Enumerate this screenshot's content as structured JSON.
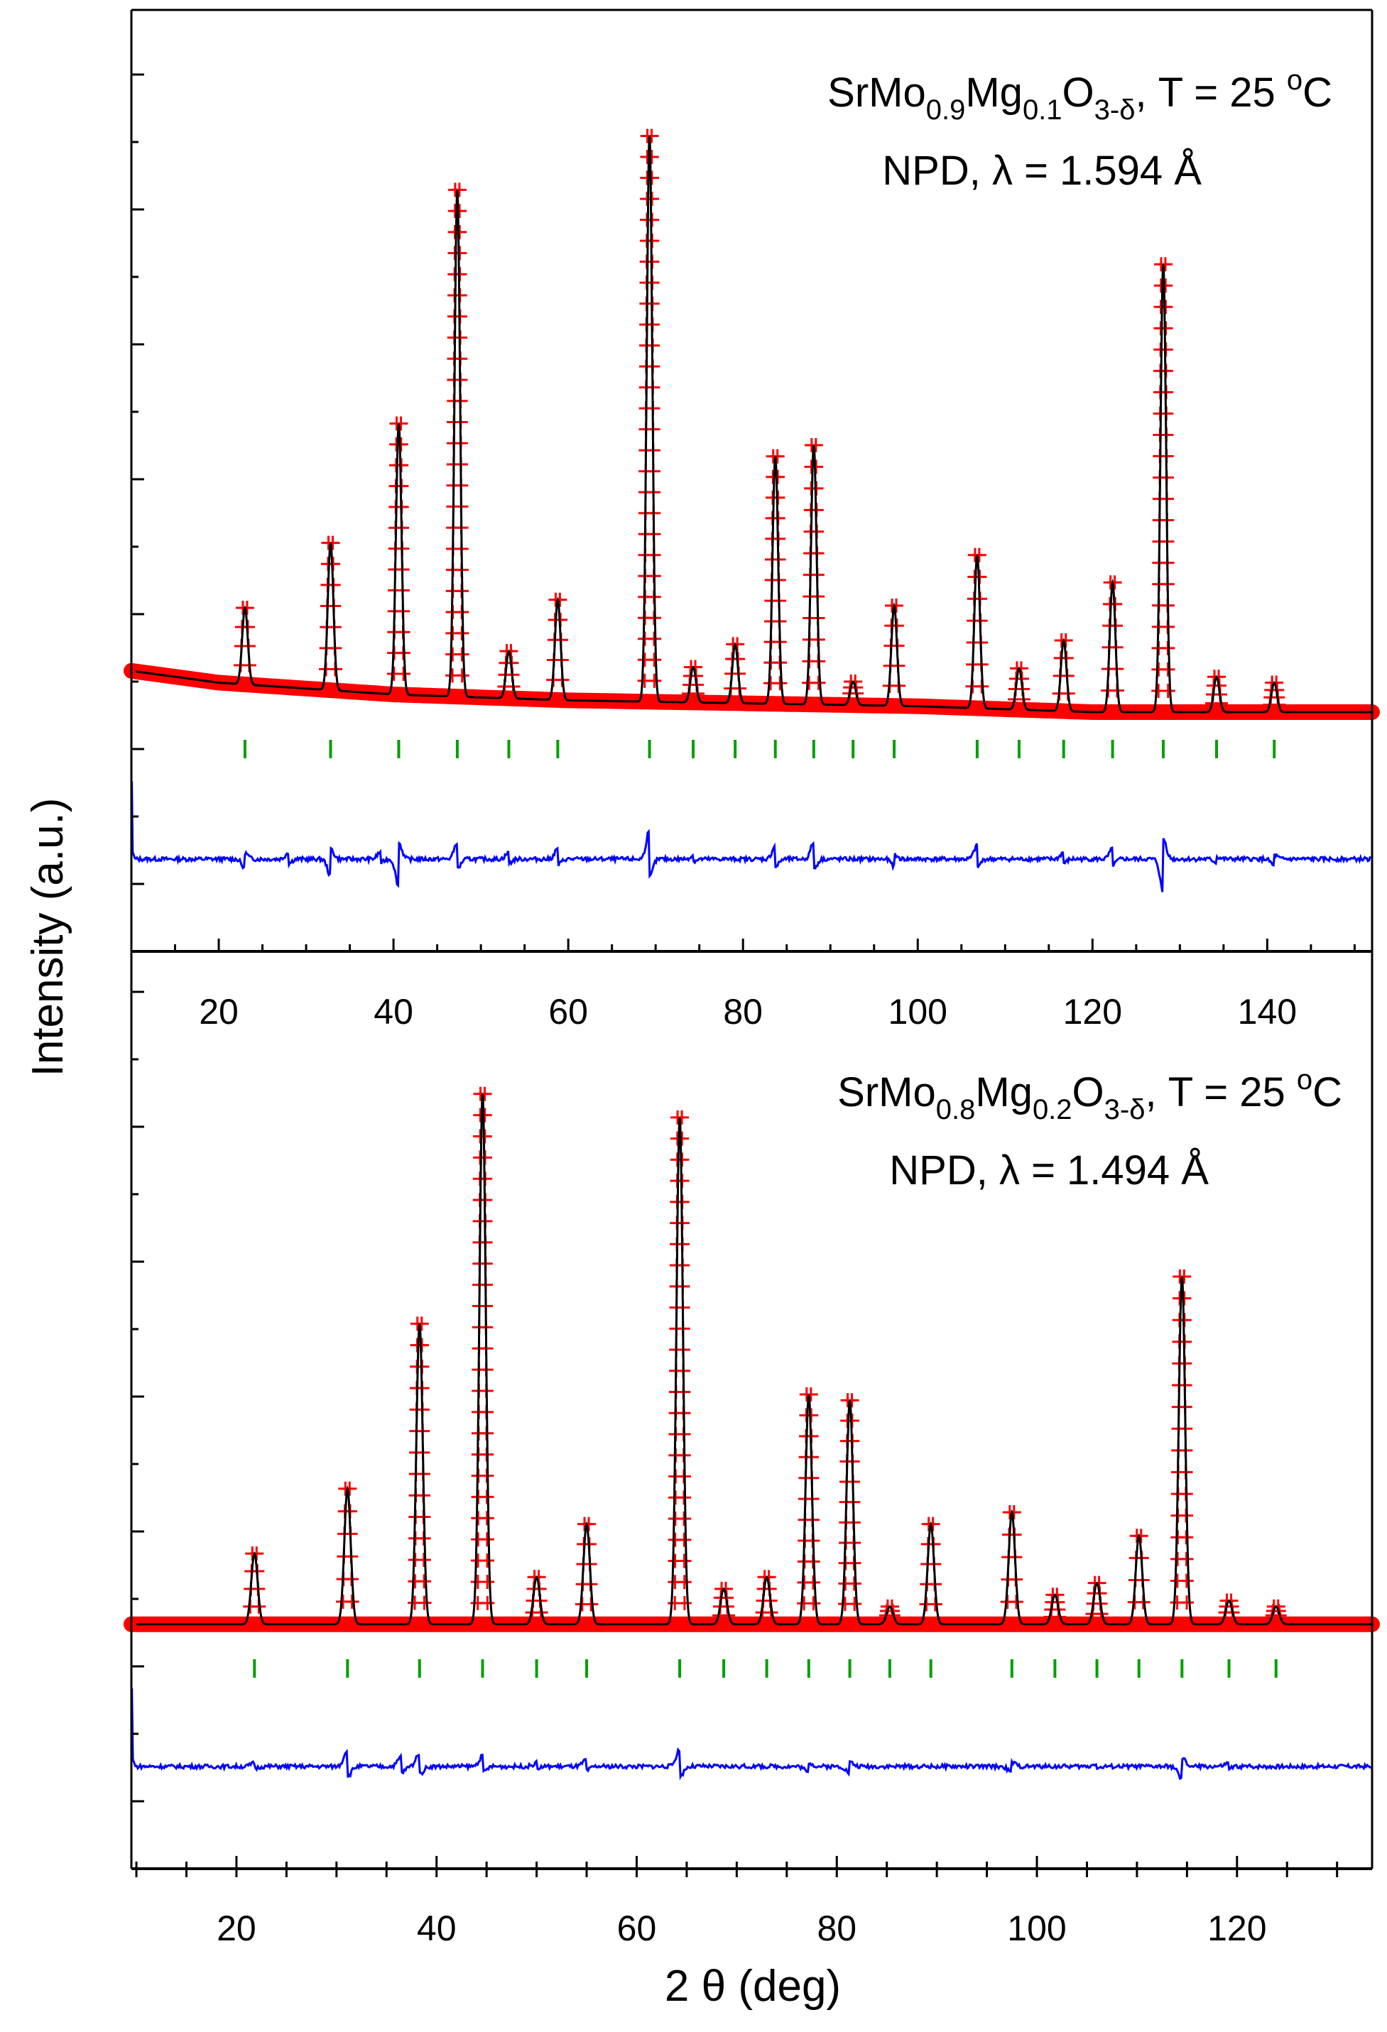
{
  "chart_data": {
    "type": "line",
    "ylabel": "Intensity (a.u.)",
    "xlabel": "2 θ (deg)",
    "legend": "none",
    "panels": [
      {
        "name": "top",
        "xlim": [
          10,
          152
        ],
        "xticks": [
          20,
          40,
          60,
          80,
          100,
          120,
          140
        ],
        "xtick_labels": [
          "20",
          "40",
          "60",
          "80",
          "100",
          "120",
          "140"
        ],
        "annotation": {
          "line1_parts": [
            "SrMo",
            "0.9",
            "Mg",
            "0.1",
            "O",
            "3-δ",
            ", T = 25 ",
            "o",
            "C"
          ],
          "line2": "NPD, λ = 1.594 Å"
        },
        "background": [
          [
            10,
            0.07
          ],
          [
            20,
            0.05
          ],
          [
            40,
            0.03
          ],
          [
            60,
            0.02
          ],
          [
            80,
            0.015
          ],
          [
            100,
            0.01
          ],
          [
            120,
            0.0
          ],
          [
            152,
            0.0
          ]
        ],
        "peaks": [
          {
            "x": 23.0,
            "y": 0.13
          },
          {
            "x": 32.8,
            "y": 0.25
          },
          {
            "x": 40.6,
            "y": 0.46
          },
          {
            "x": 47.3,
            "y": 0.86
          },
          {
            "x": 53.2,
            "y": 0.08
          },
          {
            "x": 58.8,
            "y": 0.17
          },
          {
            "x": 69.3,
            "y": 0.96
          },
          {
            "x": 74.3,
            "y": 0.06
          },
          {
            "x": 79.1,
            "y": 0.1
          },
          {
            "x": 83.7,
            "y": 0.42
          },
          {
            "x": 88.1,
            "y": 0.44
          },
          {
            "x": 92.6,
            "y": 0.04
          },
          {
            "x": 97.3,
            "y": 0.17
          },
          {
            "x": 106.8,
            "y": 0.26
          },
          {
            "x": 111.6,
            "y": 0.07
          },
          {
            "x": 116.7,
            "y": 0.12
          },
          {
            "x": 122.3,
            "y": 0.22
          },
          {
            "x": 128.1,
            "y": 0.76
          },
          {
            "x": 134.2,
            "y": 0.06
          },
          {
            "x": 140.8,
            "y": 0.05
          }
        ],
        "bragg_positions": [
          23.0,
          32.8,
          40.6,
          47.3,
          53.2,
          58.8,
          69.3,
          74.3,
          79.1,
          83.7,
          88.1,
          92.6,
          97.3,
          106.8,
          111.6,
          116.7,
          122.3,
          128.1,
          134.2,
          140.8
        ],
        "difference": [
          {
            "x": 23.0,
            "d": -0.03
          },
          {
            "x": 28.0,
            "d": 0.02
          },
          {
            "x": 32.8,
            "d": -0.05
          },
          {
            "x": 38.5,
            "d": 0.02
          },
          {
            "x": 40.6,
            "d": -0.08
          },
          {
            "x": 47.3,
            "d": 0.05
          },
          {
            "x": 53.2,
            "d": 0.02
          },
          {
            "x": 58.8,
            "d": 0.03
          },
          {
            "x": 69.3,
            "d": 0.09
          },
          {
            "x": 74.3,
            "d": 0.01
          },
          {
            "x": 83.7,
            "d": 0.04
          },
          {
            "x": 88.1,
            "d": 0.05
          },
          {
            "x": 97.3,
            "d": -0.02
          },
          {
            "x": 106.8,
            "d": 0.04
          },
          {
            "x": 116.7,
            "d": 0.02
          },
          {
            "x": 122.3,
            "d": 0.03
          },
          {
            "x": 128.1,
            "d": -0.1
          },
          {
            "x": 134.2,
            "d": -0.01
          },
          {
            "x": 140.8,
            "d": -0.02
          }
        ]
      },
      {
        "name": "bottom",
        "xlim": [
          9.5,
          133.5
        ],
        "xticks": [
          20,
          40,
          60,
          80,
          100,
          120
        ],
        "xtick_labels": [
          "20",
          "40",
          "60",
          "80",
          "100",
          "120"
        ],
        "annotation": {
          "line1_parts": [
            "SrMo",
            "0.8",
            "Mg",
            "0.2",
            "O",
            "3-δ",
            ", T = 25 ",
            "o",
            "C"
          ],
          "line2": "NPD, λ = 1.494 Å"
        },
        "background": [
          [
            9.5,
            0.01
          ],
          [
            133.5,
            0.01
          ]
        ],
        "peaks": [
          {
            "x": 21.8,
            "y": 0.12
          },
          {
            "x": 31.1,
            "y": 0.23
          },
          {
            "x": 38.3,
            "y": 0.51
          },
          {
            "x": 44.6,
            "y": 0.9
          },
          {
            "x": 50.0,
            "y": 0.08
          },
          {
            "x": 55.0,
            "y": 0.17
          },
          {
            "x": 64.3,
            "y": 0.86
          },
          {
            "x": 68.7,
            "y": 0.06
          },
          {
            "x": 73.0,
            "y": 0.08
          },
          {
            "x": 77.2,
            "y": 0.39
          },
          {
            "x": 81.3,
            "y": 0.38
          },
          {
            "x": 85.3,
            "y": 0.03
          },
          {
            "x": 89.4,
            "y": 0.17
          },
          {
            "x": 97.5,
            "y": 0.19
          },
          {
            "x": 101.8,
            "y": 0.05
          },
          {
            "x": 106.0,
            "y": 0.07
          },
          {
            "x": 110.2,
            "y": 0.15
          },
          {
            "x": 114.5,
            "y": 0.59
          },
          {
            "x": 119.2,
            "y": 0.04
          },
          {
            "x": 123.9,
            "y": 0.03
          }
        ],
        "bragg_positions": [
          21.8,
          31.1,
          38.3,
          44.6,
          50.0,
          55.0,
          64.3,
          68.7,
          73.0,
          77.2,
          81.3,
          85.3,
          89.4,
          97.5,
          101.8,
          106.0,
          110.2,
          114.5,
          119.2,
          123.9
        ],
        "difference": [
          {
            "x": 21.8,
            "d": 0.01
          },
          {
            "x": 31.1,
            "d": 0.05
          },
          {
            "x": 36.5,
            "d": 0.03
          },
          {
            "x": 38.3,
            "d": 0.04
          },
          {
            "x": 44.6,
            "d": 0.03
          },
          {
            "x": 50.0,
            "d": 0.01
          },
          {
            "x": 55.0,
            "d": 0.02
          },
          {
            "x": 64.3,
            "d": 0.05
          },
          {
            "x": 77.2,
            "d": -0.02
          },
          {
            "x": 81.3,
            "d": -0.02
          },
          {
            "x": 97.5,
            "d": -0.02
          },
          {
            "x": 106.0,
            "d": 0.01
          },
          {
            "x": 114.5,
            "d": -0.04
          },
          {
            "x": 119.2,
            "d": 0.01
          }
        ]
      }
    ]
  },
  "colors": {
    "observed": "#ff0000",
    "calculated": "#000000",
    "difference": "#0000ff",
    "bragg": "#00a000",
    "axes": "#000000"
  }
}
